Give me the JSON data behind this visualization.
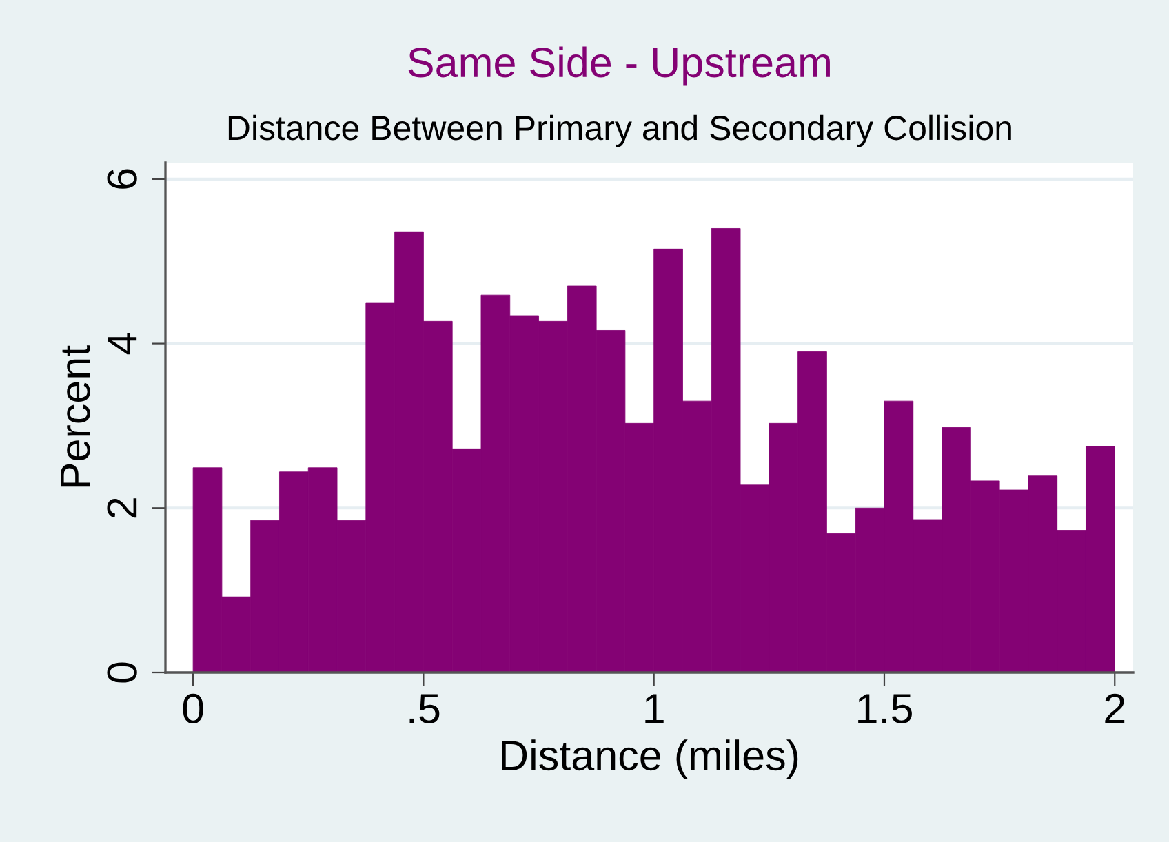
{
  "chart_data": {
    "type": "histogram",
    "title": "Same Side - Upstream",
    "subtitle": "Distance Between Primary and Secondary Collision",
    "xlabel": "Distance (miles)",
    "ylabel": "Percent",
    "bins": [
      0,
      0.0625,
      0.125,
      0.1875,
      0.25,
      0.3125,
      0.375,
      0.4375,
      0.5,
      0.5625,
      0.625,
      0.6875,
      0.75,
      0.8125,
      0.875,
      0.9375,
      1.0,
      1.0625,
      1.125,
      1.1875,
      1.25,
      1.3125,
      1.375,
      1.4375,
      1.5,
      1.5625,
      1.625,
      1.6875,
      1.75,
      1.8125,
      1.875,
      1.9375,
      2.0
    ],
    "values": [
      2.49,
      0.92,
      1.85,
      2.44,
      2.49,
      1.85,
      4.49,
      5.36,
      4.27,
      2.72,
      4.59,
      4.34,
      4.27,
      4.7,
      4.16,
      3.03,
      5.15,
      3.3,
      5.4,
      2.28,
      3.03,
      3.9,
      1.69,
      2.0,
      3.3,
      1.86,
      2.98,
      2.33,
      2.22,
      2.39,
      1.73,
      2.75
    ],
    "color": "#840274",
    "xlim": [
      -0.06,
      2.04
    ],
    "ylim": [
      0,
      6.2
    ],
    "xticks": [
      0,
      {
        "value": 0.5,
        "label": ".5"
      },
      1,
      1.5,
      2
    ],
    "yticks": [
      0,
      2,
      4,
      6
    ],
    "grid": "y"
  }
}
